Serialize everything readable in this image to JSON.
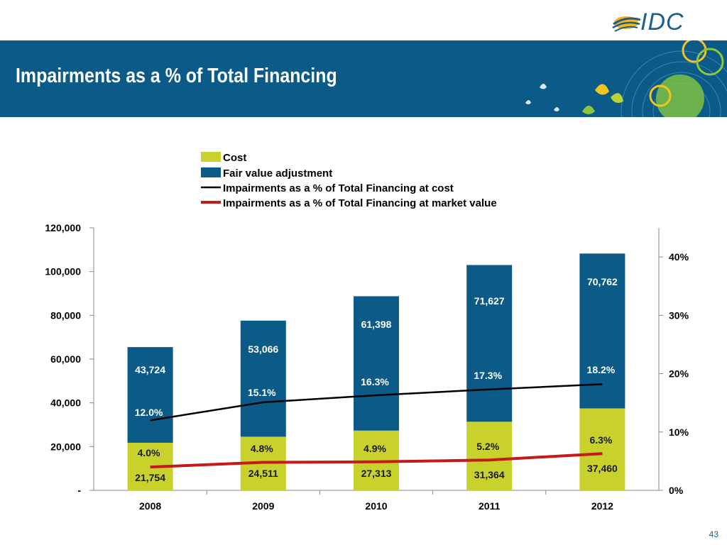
{
  "brand": {
    "logo_text": "IDC"
  },
  "slide": {
    "title": "Impairments as a % of Total Financing",
    "page_number": "43"
  },
  "colors": {
    "banner": "#0b5a88",
    "cost": "#c9d22c",
    "fair_value": "#0b5a88",
    "line_cost": "#000000",
    "line_market": "#c41a1a",
    "white_label": "#ffffff",
    "dark_label": "#1a1a1a"
  },
  "chart_data": {
    "type": "bar",
    "stacked": true,
    "categories": [
      "2008",
      "2009",
      "2010",
      "2011",
      "2012"
    ],
    "series": [
      {
        "name": "Cost",
        "values": [
          21754,
          24511,
          27313,
          31364,
          37460
        ],
        "labels": [
          "21,754",
          "24,511",
          "27,313",
          "31,364",
          "37,460"
        ]
      },
      {
        "name": "Fair value adjustment",
        "values": [
          43724,
          53066,
          61398,
          71627,
          70762
        ],
        "labels": [
          "43,724",
          "53,066",
          "61,398",
          "71,627",
          "70,762"
        ]
      }
    ],
    "lines": [
      {
        "name": "Impairments as a % of Total Financing at cost",
        "axis": "right",
        "values": [
          12.0,
          15.1,
          16.3,
          17.3,
          18.2
        ],
        "labels": [
          "12.0%",
          "15.1%",
          "16.3%",
          "17.3%",
          "18.2%"
        ]
      },
      {
        "name": "Impairments as a % of Total Financing at market value",
        "axis": "right",
        "values": [
          4.0,
          4.8,
          4.9,
          5.2,
          6.3
        ],
        "labels": [
          "4.0%",
          "4.8%",
          "4.9%",
          "5.2%",
          "6.3%"
        ]
      }
    ],
    "ylim": [
      0,
      120000
    ],
    "y_ticks": [
      {
        "value": 0,
        "label": "-"
      },
      {
        "value": 20000,
        "label": "20,000"
      },
      {
        "value": 40000,
        "label": "40,000"
      },
      {
        "value": 60000,
        "label": "60,000"
      },
      {
        "value": 80000,
        "label": "80,000"
      },
      {
        "value": 100000,
        "label": "100,000"
      },
      {
        "value": 120000,
        "label": "120,000"
      }
    ],
    "y2lim": [
      0,
      45
    ],
    "y2_ticks": [
      {
        "value": 0,
        "label": "0%"
      },
      {
        "value": 10,
        "label": "10%"
      },
      {
        "value": 20,
        "label": "20%"
      },
      {
        "value": 30,
        "label": "30%"
      },
      {
        "value": 40,
        "label": "40%"
      }
    ],
    "grid": false,
    "legend_position": "top"
  }
}
